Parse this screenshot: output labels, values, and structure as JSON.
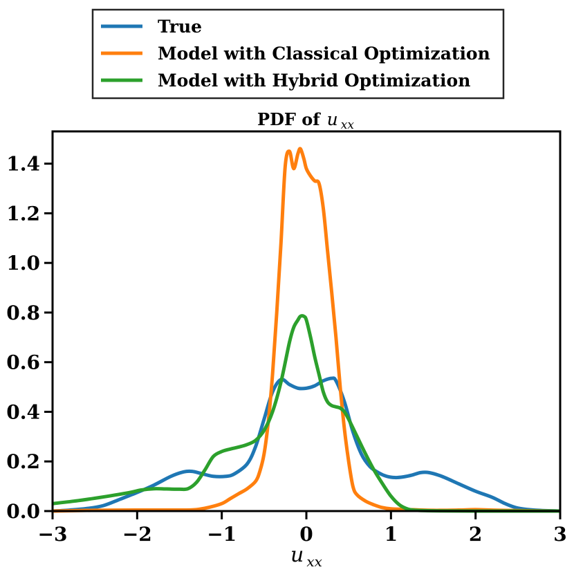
{
  "chart_data": {
    "type": "line",
    "title": {
      "prefix": "PDF of",
      "var_base": "u",
      "var_sub": "xx"
    },
    "xlabel": {
      "var_base": "u",
      "var_sub": "xx"
    },
    "ylabel": "",
    "xlim": [
      -3,
      3
    ],
    "ylim": [
      0,
      1.53
    ],
    "xticks": [
      -3,
      -2,
      -1,
      0,
      1,
      2,
      3
    ],
    "xtick_labels": [
      "−3",
      "−2",
      "−1",
      "0",
      "1",
      "2",
      "3"
    ],
    "yticks": [
      0,
      0.2,
      0.4,
      0.6,
      0.8,
      1.0,
      1.2,
      1.4
    ],
    "ytick_labels": [
      "0.0",
      "0.2",
      "0.4",
      "0.6",
      "0.8",
      "1.0",
      "1.2",
      "1.4"
    ],
    "grid": false,
    "legend_position": "top-center-outside",
    "series": [
      {
        "name": "True",
        "color": "#1f77b4",
        "x": [
          -3,
          -2.8,
          -2.6,
          -2.4,
          -2.2,
          -2.0,
          -1.8,
          -1.6,
          -1.45,
          -1.35,
          -1.25,
          -1.1,
          -0.95,
          -0.85,
          -0.7,
          -0.6,
          -0.5,
          -0.4,
          -0.3,
          -0.2,
          -0.1,
          0.0,
          0.1,
          0.2,
          0.3,
          0.35,
          0.45,
          0.55,
          0.65,
          0.75,
          0.85,
          0.95,
          1.05,
          1.15,
          1.25,
          1.35,
          1.45,
          1.6,
          1.8,
          2.0,
          2.2,
          2.35,
          2.5,
          2.7,
          3.0
        ],
        "y": [
          0.0,
          0.004,
          0.01,
          0.022,
          0.048,
          0.075,
          0.105,
          0.14,
          0.158,
          0.16,
          0.152,
          0.14,
          0.14,
          0.15,
          0.19,
          0.26,
          0.37,
          0.48,
          0.53,
          0.51,
          0.495,
          0.495,
          0.505,
          0.525,
          0.535,
          0.525,
          0.44,
          0.32,
          0.23,
          0.18,
          0.155,
          0.14,
          0.135,
          0.138,
          0.145,
          0.155,
          0.155,
          0.14,
          0.11,
          0.08,
          0.055,
          0.03,
          0.012,
          0.004,
          0.0
        ]
      },
      {
        "name": "Model with Classical Optimization",
        "color": "#ff7f0e",
        "x": [
          -3,
          -2.5,
          -2.0,
          -1.5,
          -1.3,
          -1.15,
          -1.0,
          -0.9,
          -0.8,
          -0.7,
          -0.6,
          -0.55,
          -0.5,
          -0.45,
          -0.4,
          -0.35,
          -0.3,
          -0.25,
          -0.2,
          -0.15,
          -0.1,
          -0.07,
          -0.03,
          0.0,
          0.05,
          0.1,
          0.15,
          0.2,
          0.25,
          0.3,
          0.35,
          0.4,
          0.45,
          0.5,
          0.55,
          0.6,
          0.7,
          0.8,
          0.9,
          1.0,
          1.2,
          1.5,
          1.8,
          2.0,
          2.3,
          3.0
        ],
        "y": [
          0.0,
          0.003,
          0.004,
          0.004,
          0.006,
          0.015,
          0.03,
          0.05,
          0.07,
          0.09,
          0.12,
          0.16,
          0.23,
          0.36,
          0.55,
          0.8,
          1.08,
          1.39,
          1.45,
          1.38,
          1.44,
          1.46,
          1.42,
          1.38,
          1.35,
          1.33,
          1.32,
          1.22,
          1.05,
          0.88,
          0.7,
          0.5,
          0.33,
          0.2,
          0.1,
          0.065,
          0.04,
          0.025,
          0.014,
          0.009,
          0.006,
          0.003,
          0.004,
          0.006,
          0.003,
          0.0
        ]
      },
      {
        "name": "Model with Hybrid Optimization",
        "color": "#2ca02c",
        "x": [
          -3,
          -2.7,
          -2.4,
          -2.1,
          -1.95,
          -1.8,
          -1.65,
          -1.5,
          -1.4,
          -1.3,
          -1.2,
          -1.1,
          -1.0,
          -0.9,
          -0.8,
          -0.7,
          -0.6,
          -0.5,
          -0.4,
          -0.3,
          -0.2,
          -0.15,
          -0.1,
          -0.07,
          -0.03,
          0.0,
          0.05,
          0.1,
          0.15,
          0.2,
          0.25,
          0.3,
          0.35,
          0.4,
          0.45,
          0.5,
          0.6,
          0.7,
          0.8,
          0.9,
          1.0,
          1.1,
          1.2,
          1.3,
          1.5,
          2.0,
          3.0
        ],
        "y": [
          0.03,
          0.042,
          0.057,
          0.074,
          0.085,
          0.09,
          0.089,
          0.088,
          0.09,
          0.115,
          0.165,
          0.22,
          0.24,
          0.25,
          0.258,
          0.268,
          0.285,
          0.325,
          0.4,
          0.52,
          0.68,
          0.74,
          0.77,
          0.785,
          0.785,
          0.77,
          0.7,
          0.62,
          0.55,
          0.48,
          0.44,
          0.425,
          0.42,
          0.415,
          0.4,
          0.37,
          0.3,
          0.23,
          0.165,
          0.11,
          0.06,
          0.025,
          0.008,
          0.003,
          0.001,
          0.0,
          0.0
        ]
      }
    ]
  }
}
